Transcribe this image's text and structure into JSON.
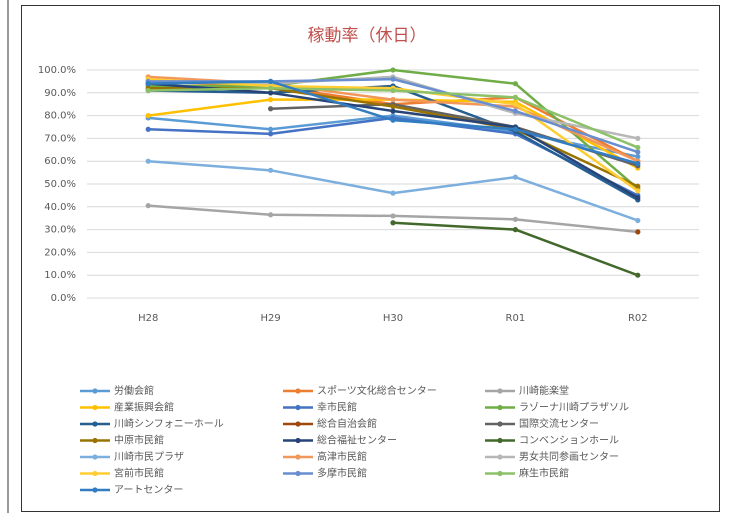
{
  "chart_data": {
    "type": "line",
    "title": "稼動率（休日）",
    "categories": [
      "H28",
      "H29",
      "H30",
      "R01",
      "R02"
    ],
    "ylim": [
      0,
      100
    ],
    "yticks": [
      {
        "value": 0,
        "label": "0.0%"
      },
      {
        "value": 10,
        "label": "10.0%"
      },
      {
        "value": 20,
        "label": "20.0%"
      },
      {
        "value": 30,
        "label": "30.0%"
      },
      {
        "value": 40,
        "label": "40.0%"
      },
      {
        "value": 50,
        "label": "50.0%"
      },
      {
        "value": 60,
        "label": "60.0%"
      },
      {
        "value": 70,
        "label": "70.0%"
      },
      {
        "value": 80,
        "label": "80.0%"
      },
      {
        "value": 90,
        "label": "90.0%"
      },
      {
        "value": 100,
        "label": "100.0%"
      }
    ],
    "grid": true,
    "legend": "bottom",
    "series": [
      {
        "name": "労働会館",
        "color": "#5B9BD5",
        "values": [
          79,
          74,
          80,
          73,
          62
        ]
      },
      {
        "name": "スポーツ文化総合センター",
        "color": "#ED7D31",
        "values": [
          95,
          93,
          85,
          88,
          60
        ]
      },
      {
        "name": "川崎能楽堂",
        "color": "#A5A5A5",
        "values": [
          40.5,
          36.5,
          36,
          34.5,
          29
        ]
      },
      {
        "name": "産業振興会館",
        "color": "#FFC000",
        "values": [
          80,
          87,
          87,
          86,
          57
        ]
      },
      {
        "name": "幸市民館",
        "color": "#4472C4",
        "values": [
          74,
          72,
          79,
          72,
          45
        ]
      },
      {
        "name": "ラゾーナ川崎プラザソル",
        "color": "#70AD47",
        "values": [
          93,
          93,
          100,
          94,
          48
        ]
      },
      {
        "name": "川崎シンフォニーホール",
        "color": "#255E91",
        "values": [
          91,
          90,
          93,
          73,
          43
        ]
      },
      {
        "name": "総合自治会館",
        "color": "#9E480E",
        "values": [
          null,
          null,
          null,
          null,
          29
        ]
      },
      {
        "name": "国際交流センター",
        "color": "#636363",
        "values": [
          null,
          83,
          85,
          75,
          58
        ]
      },
      {
        "name": "中原市民館",
        "color": "#997300",
        "values": [
          92,
          92,
          84,
          74,
          49
        ]
      },
      {
        "name": "総合福祉センター",
        "color": "#264478",
        "values": [
          94,
          90,
          82,
          75,
          44
        ]
      },
      {
        "name": "コンベンションホール",
        "color": "#43682B",
        "values": [
          null,
          null,
          33,
          30,
          10
        ]
      },
      {
        "name": "川崎市民プラザ",
        "color": "#7CAFDD",
        "values": [
          60,
          56,
          46,
          53,
          34
        ]
      },
      {
        "name": "高津市民館",
        "color": "#F1975A",
        "values": [
          97,
          94,
          87,
          84,
          60
        ]
      },
      {
        "name": "男女共同参画センター",
        "color": "#B7B7B7",
        "values": [
          95,
          94,
          97,
          81,
          70
        ]
      },
      {
        "name": "宮前市民館",
        "color": "#FFCD33",
        "values": [
          96,
          93,
          92,
          85,
          47
        ]
      },
      {
        "name": "多摩市民館",
        "color": "#698ED0",
        "values": [
          95,
          95,
          96,
          82,
          64
        ]
      },
      {
        "name": "麻生市民館",
        "color": "#8CC168",
        "values": [
          91,
          92,
          91,
          88,
          66
        ]
      },
      {
        "name": "アートセンター",
        "color": "#327DC2",
        "values": [
          94,
          95,
          78,
          74,
          59
        ]
      }
    ]
  }
}
